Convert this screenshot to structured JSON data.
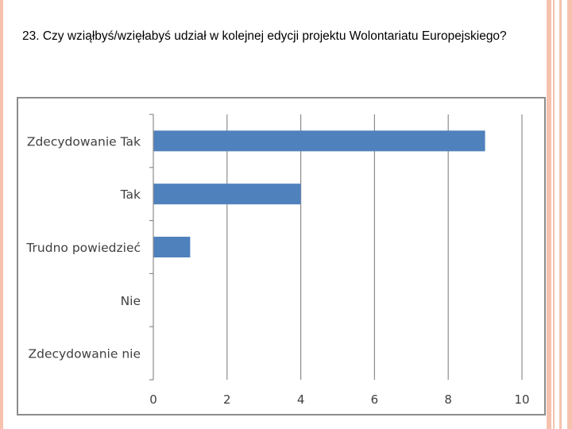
{
  "question": {
    "text": "23. Czy wziąłbyś/wzięłabyś udział w kolejnej edycji projektu Wolontariatu Europejskiego?"
  },
  "colors": {
    "bar": "#4f81bd",
    "grid": "#8c8c8c",
    "frame": "#8c8c8c",
    "accent_stripe": "#f6c2ae"
  },
  "chart_data": {
    "type": "bar",
    "orientation": "horizontal",
    "title": "",
    "xlabel": "",
    "ylabel": "",
    "categories": [
      "Zdecydowanie Tak",
      "Tak",
      "Trudno powiedzieć",
      "Nie",
      "Zdecydowanie nie"
    ],
    "values": [
      9,
      4,
      1,
      0,
      0
    ],
    "xlim": [
      0,
      10
    ],
    "xticks": [
      "0",
      "2",
      "4",
      "6",
      "8",
      "10"
    ],
    "grid": true,
    "legend": "none"
  }
}
